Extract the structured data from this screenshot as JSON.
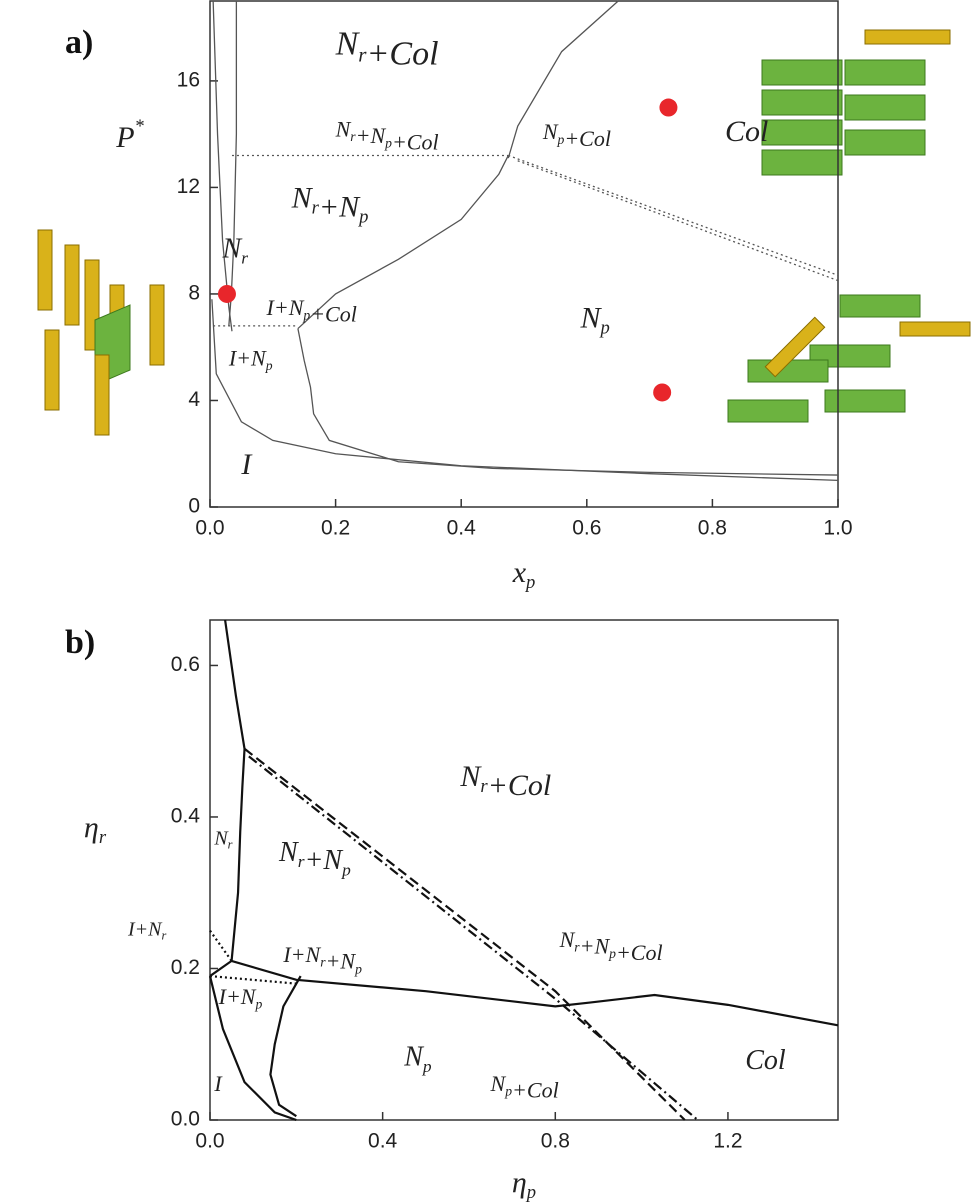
{
  "chart_data": [
    {
      "type": "line",
      "panel_label": "a)",
      "x_label": {
        "parts": [
          "x",
          {
            "sub": "p"
          }
        ]
      },
      "y_label": {
        "parts": [
          "P",
          {
            "sup": "*"
          }
        ]
      },
      "xlim": [
        0,
        1.0
      ],
      "ylim": [
        0,
        19
      ],
      "xticks": [
        {
          "value": 0,
          "label": "0.0"
        },
        0.2,
        0.4,
        0.6,
        0.8,
        {
          "value": 1,
          "label": "1.0"
        }
      ],
      "yticks": [
        0,
        4,
        8,
        12,
        16
      ],
      "series": [
        {
          "style": "solid",
          "color": "#555555",
          "x": [
            0.005,
            0.012,
            0.02,
            0.03,
            0.035
          ],
          "values": [
            19,
            14,
            10,
            7.5,
            6.6
          ]
        },
        {
          "style": "solid",
          "color": "#555555",
          "x": [
            0.042,
            0.042,
            0.038,
            0.034,
            0.03
          ],
          "values": [
            19,
            14,
            10,
            8,
            6.8
          ]
        },
        {
          "style": "solid",
          "color": "#555555",
          "x": [
            0.003,
            0.01,
            0.05,
            0.1,
            0.2,
            0.4,
            0.7,
            1.0
          ],
          "values": [
            7.8,
            5,
            3.2,
            2.5,
            2.0,
            1.55,
            1.25,
            1.0
          ]
        },
        {
          "style": "solid",
          "color": "#555555",
          "x": [
            0.14,
            0.15,
            0.16,
            0.165,
            0.19,
            0.3,
            0.45,
            0.7,
            1.0
          ],
          "values": [
            6.7,
            5.5,
            4.5,
            3.5,
            2.5,
            1.7,
            1.45,
            1.3,
            1.2
          ]
        },
        {
          "style": "solid",
          "color": "#555555",
          "x": [
            0.14,
            0.2,
            0.3,
            0.4,
            0.46,
            0.475
          ],
          "values": [
            6.7,
            8,
            9.3,
            10.8,
            12.5,
            13.2
          ]
        },
        {
          "style": "solid",
          "color": "#555555",
          "x": [
            0.475,
            0.49,
            0.56,
            0.65
          ],
          "values": [
            13.1,
            14.3,
            17.1,
            19
          ]
        },
        {
          "style": "dotted",
          "color": "#555555",
          "x": [
            0.035,
            0.475
          ],
          "values": [
            13.2,
            13.2
          ]
        },
        {
          "style": "dotted",
          "color": "#555555",
          "x": [
            0.475,
            1.0
          ],
          "values": [
            13.2,
            8.7
          ]
        },
        {
          "style": "dotted",
          "color": "#555555",
          "x": [
            0.49,
            1.0
          ],
          "values": [
            13.0,
            8.5
          ]
        },
        {
          "style": "dotted",
          "color": "#555555",
          "x": [
            0.005,
            0.14
          ],
          "values": [
            6.8,
            6.8
          ]
        },
        {
          "style": "points",
          "color": "#e8262b",
          "x": [
            0.027,
            0.73,
            0.72
          ],
          "values": [
            8,
            15,
            4.3
          ]
        }
      ],
      "annotations": [
        {
          "parts": [
            "N",
            {
              "sub": "r"
            },
            "+Col"
          ]
        },
        {
          "parts": [
            "N",
            {
              "sub": "r"
            },
            "+N",
            {
              "sub": "p"
            },
            "+Col"
          ]
        },
        {
          "parts": [
            "N",
            {
              "sub": "p"
            },
            "+Col"
          ]
        },
        {
          "parts": [
            "Col"
          ]
        },
        {
          "parts": [
            "N",
            {
              "sub": "r"
            },
            "+N",
            {
              "sub": "p"
            }
          ]
        },
        {
          "parts": [
            "N",
            {
              "sub": "r"
            }
          ]
        },
        {
          "parts": [
            "I+N",
            {
              "sub": "p"
            },
            "+Col"
          ]
        },
        {
          "parts": [
            "N",
            {
              "sub": "p"
            }
          ]
        },
        {
          "parts": [
            "I+N",
            {
              "sub": "p"
            }
          ]
        },
        {
          "parts": [
            "I"
          ]
        }
      ]
    },
    {
      "type": "line",
      "panel_label": "b)",
      "x_label": {
        "parts": [
          "η",
          {
            "sub": "p"
          }
        ]
      },
      "y_label": {
        "parts": [
          "η",
          {
            "sub": "r"
          }
        ]
      },
      "xlim": [
        0,
        1.455
      ],
      "ylim": [
        0,
        0.66
      ],
      "xticks": [
        {
          "value": 0,
          "label": "0.0"
        },
        0.4,
        0.8,
        1.2
      ],
      "yticks": [
        {
          "value": 0,
          "label": "0.0"
        },
        0.2,
        0.4,
        0.6
      ],
      "series": [
        {
          "style": "solid",
          "color": "#111111",
          "x": [
            0.035,
            0.06,
            0.08,
            0.075,
            0.07,
            0.065,
            0.05
          ],
          "values": [
            0.66,
            0.56,
            0.49,
            0.44,
            0.38,
            0.3,
            0.21
          ]
        },
        {
          "style": "solid",
          "color": "#111111",
          "x": [
            0,
            0.03,
            0.08,
            0.15,
            0.2
          ],
          "values": [
            0.19,
            0.12,
            0.05,
            0.01,
            0.0
          ]
        },
        {
          "style": "solid",
          "color": "#111111",
          "x": [
            0.21,
            0.17,
            0.15,
            0.14,
            0.16,
            0.2
          ],
          "values": [
            0.19,
            0.15,
            0.1,
            0.06,
            0.02,
            0.005
          ]
        },
        {
          "style": "solid",
          "color": "#111111",
          "x": [
            0,
            0.05,
            0.2,
            0.5,
            0.8,
            0.88,
            1.03,
            1.2,
            1.455
          ],
          "values": [
            0.19,
            0.21,
            0.185,
            0.17,
            0.15,
            0.155,
            0.165,
            0.152,
            0.125
          ]
        },
        {
          "style": "dashed",
          "color": "#111111",
          "x": [
            0.08,
            0.8,
            1.1
          ],
          "values": [
            0.49,
            0.17,
            0.0
          ]
        },
        {
          "style": "dashdot",
          "color": "#111111",
          "x": [
            0.09,
            0.8,
            1.13
          ],
          "values": [
            0.48,
            0.16,
            0.0
          ]
        },
        {
          "style": "dotted",
          "color": "#111111",
          "x": [
            0.0,
            0.05
          ],
          "values": [
            0.25,
            0.21
          ]
        },
        {
          "style": "dotted",
          "color": "#111111",
          "x": [
            0.0,
            0.2
          ],
          "values": [
            0.19,
            0.18
          ]
        }
      ],
      "annotations": [
        {
          "parts": [
            "N",
            {
              "sub": "r"
            },
            "+Col"
          ]
        },
        {
          "parts": [
            "N",
            {
              "sub": "r"
            }
          ]
        },
        {
          "parts": [
            "N",
            {
              "sub": "r"
            },
            "+N",
            {
              "sub": "p"
            }
          ]
        },
        {
          "parts": [
            "I+N",
            {
              "sub": "r"
            }
          ]
        },
        {
          "parts": [
            "I+N",
            {
              "sub": "r"
            },
            "+N",
            {
              "sub": "p"
            }
          ]
        },
        {
          "parts": [
            "N",
            {
              "sub": "r"
            },
            "+N",
            {
              "sub": "p"
            },
            "+Col"
          ]
        },
        {
          "parts": [
            "I+N",
            {
              "sub": "p"
            }
          ]
        },
        {
          "parts": [
            "N",
            {
              "sub": "p"
            }
          ]
        },
        {
          "parts": [
            "N",
            {
              "sub": "p"
            },
            "+Col"
          ]
        },
        {
          "parts": [
            "Col"
          ]
        },
        {
          "parts": [
            "I"
          ]
        }
      ]
    }
  ]
}
